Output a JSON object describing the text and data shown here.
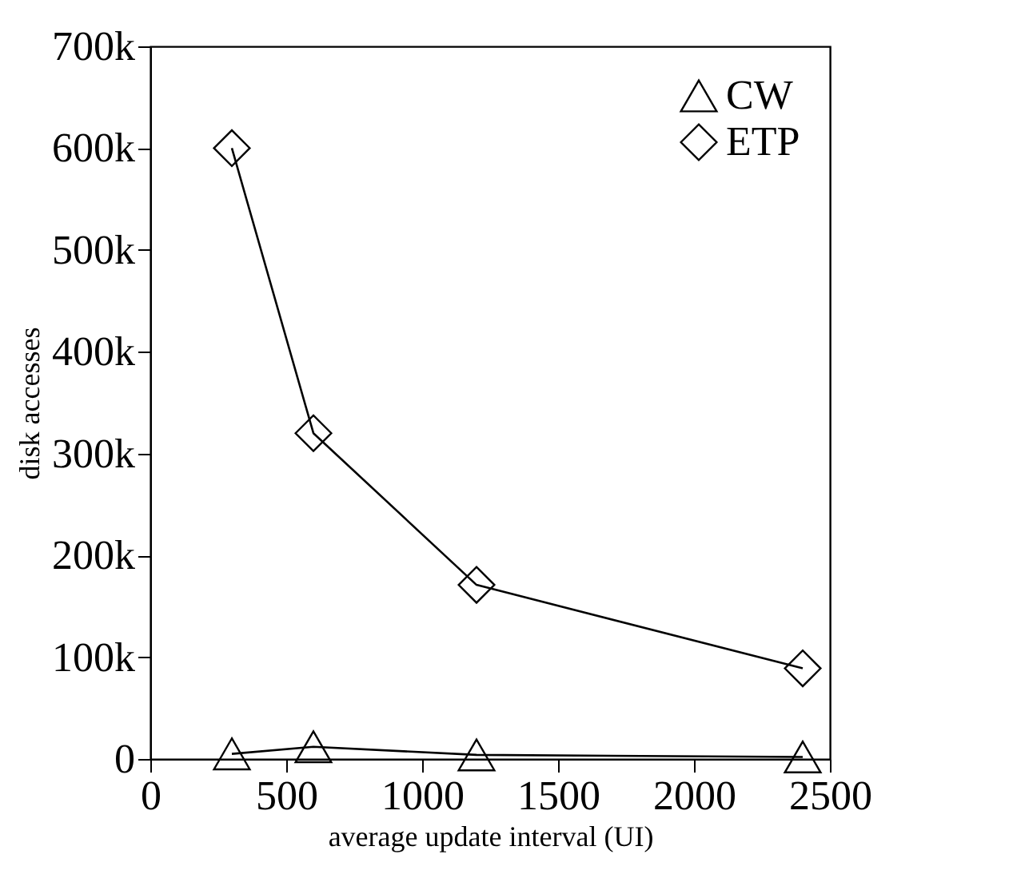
{
  "chart_data": {
    "type": "line",
    "xlabel": "average update interval (UI)",
    "ylabel": "disk accesses",
    "x": [
      300,
      600,
      1200,
      2400
    ],
    "series": [
      {
        "name": "CW",
        "color": "#000000",
        "marker": "triangle",
        "values": [
          5000,
          12000,
          4000,
          2000
        ]
      },
      {
        "name": "ETP",
        "color": "#000000",
        "marker": "diamond",
        "values": [
          600000,
          320000,
          171000,
          89000
        ]
      }
    ],
    "xlim": [
      0,
      2500
    ],
    "xticks": [
      0,
      500,
      1000,
      1500,
      2000,
      2500
    ],
    "ylim": [
      0,
      700000
    ],
    "yticks": [
      {
        "value": 0,
        "label": "0"
      },
      {
        "value": 100000,
        "label": "100k"
      },
      {
        "value": 200000,
        "label": "200k"
      },
      {
        "value": 300000,
        "label": "300k"
      },
      {
        "value": 400000,
        "label": "400k"
      },
      {
        "value": 500000,
        "label": "500k"
      },
      {
        "value": 600000,
        "label": "600k"
      },
      {
        "value": 700000,
        "label": "700k"
      }
    ],
    "grid": false,
    "legend": "top right",
    "line_style": "solid"
  }
}
